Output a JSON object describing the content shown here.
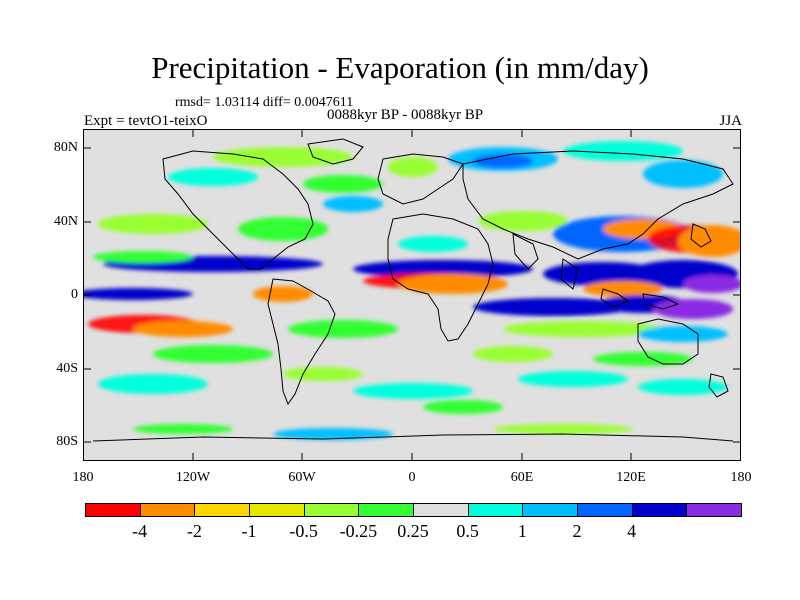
{
  "title": "Precipitation - Evaporation (in mm/day)",
  "stats": "rmsd= 1.03114 diff= 0.0047611",
  "left_label": "Expt = tevtO1-teixO",
  "center_label": "0088kyr BP - 0088kyr BP",
  "right_label": "JJA",
  "map": {
    "projection": "cylindrical equidistant",
    "lon_range": [
      -180,
      180
    ],
    "lat_range": [
      -90,
      90
    ],
    "coastlines": true,
    "y_ticks": [
      "80N",
      "40N",
      "0",
      "40S",
      "80S"
    ],
    "x_ticks": [
      "180",
      "120W",
      "60W",
      "0",
      "60E",
      "120E",
      "180"
    ]
  },
  "colorbar": {
    "colors": [
      "#ff0000",
      "#ff8c00",
      "#ffd700",
      "#e6e600",
      "#99ff33",
      "#33ff33",
      "#e0e0e0",
      "#00ffdd",
      "#00bfff",
      "#0066ff",
      "#0000cc",
      "#8a2be2"
    ],
    "levels": [
      "-4",
      "-2",
      "-1",
      "-0.5",
      "-0.25",
      "0.25",
      "0.5",
      "1",
      "2",
      "4"
    ]
  }
}
